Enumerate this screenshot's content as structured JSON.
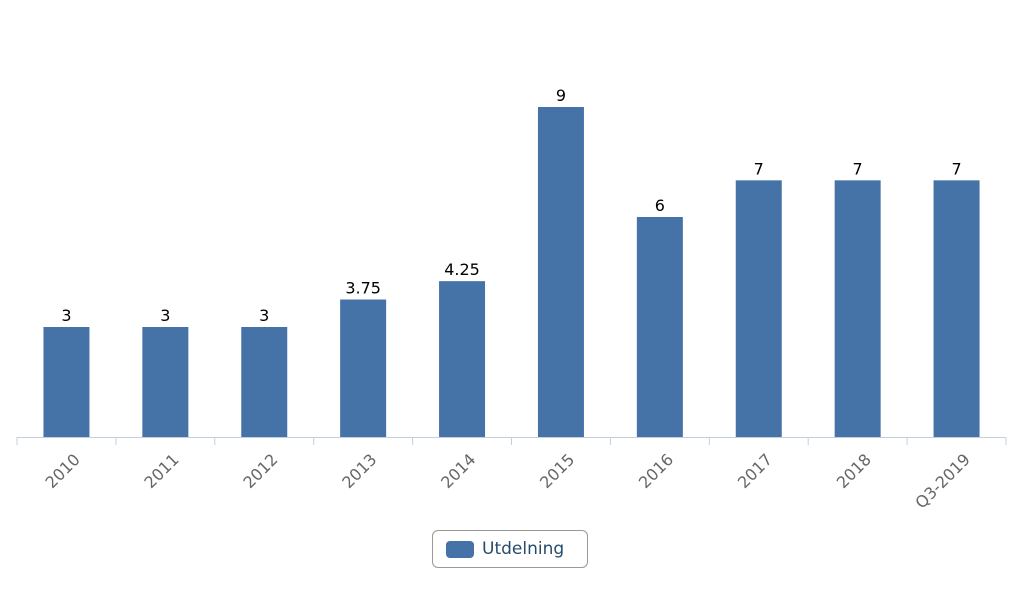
{
  "chart_data": {
    "type": "bar",
    "title": "",
    "xlabel": "",
    "ylabel": "",
    "categories": [
      "2010",
      "2011",
      "2012",
      "2013",
      "2014",
      "2015",
      "2016",
      "2017",
      "2018",
      "Q3-2019"
    ],
    "series": [
      {
        "name": "Utdelning",
        "values": [
          3,
          3,
          3,
          3.75,
          4.25,
          9,
          6,
          7,
          7,
          7
        ],
        "color": "#4572a7"
      }
    ],
    "data_labels": [
      "3",
      "3",
      "3",
      "3.75",
      "4.25",
      "9",
      "6",
      "7",
      "7",
      "7"
    ],
    "ylim": [
      0,
      9
    ],
    "grid": false,
    "legend_position": "bottom-center",
    "axis_color": "#c0d0e0"
  },
  "legend": {
    "label": "Utdelning"
  }
}
